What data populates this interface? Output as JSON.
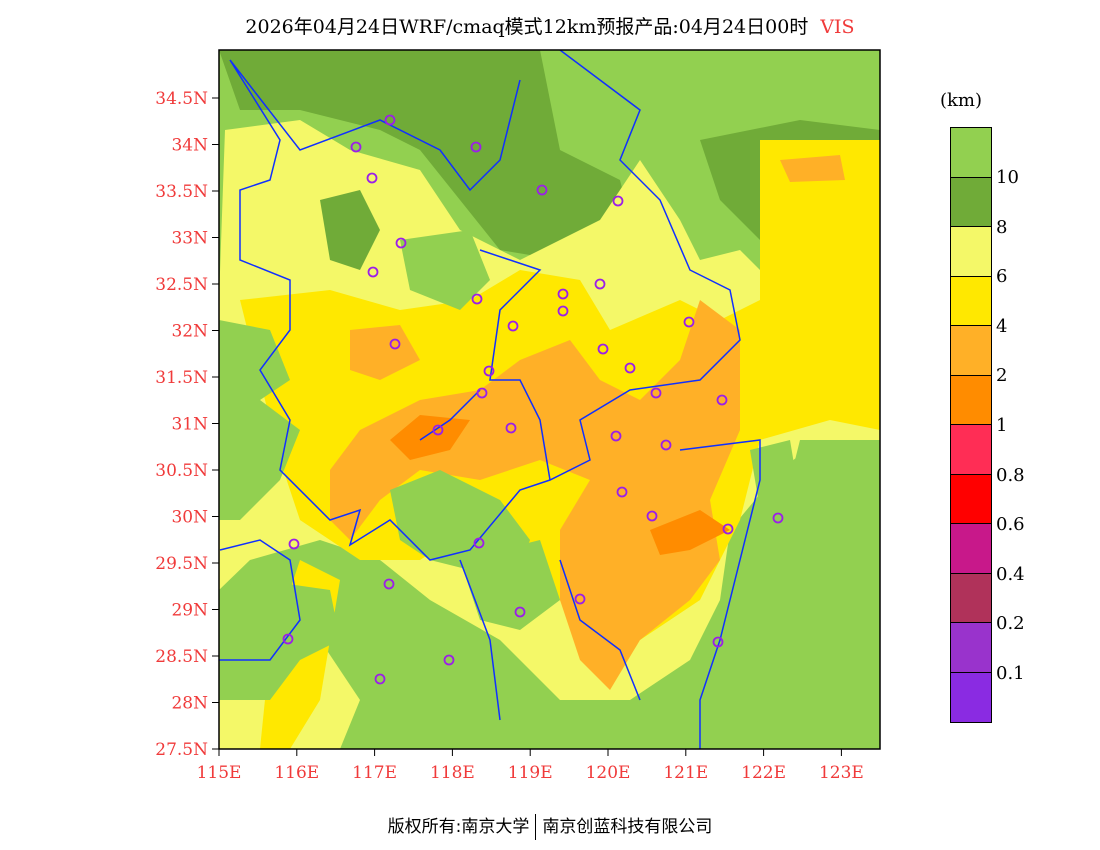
{
  "title": {
    "text": "2026年04月24日WRF/cmaq模式12km预报产品:04月24日00时",
    "variable": "VIS"
  },
  "axes": {
    "lat_labels": [
      "27.5N",
      "28N",
      "28.5N",
      "29N",
      "29.5N",
      "30N",
      "30.5N",
      "31N",
      "31.5N",
      "32N",
      "32.5N",
      "33N",
      "33.5N",
      "34N",
      "34.5N"
    ],
    "lon_labels": [
      "115E",
      "116E",
      "117E",
      "118E",
      "119E",
      "120E",
      "121E",
      "122E",
      "123E"
    ]
  },
  "legend": {
    "unit": "(km)",
    "labels": [
      "10",
      "8",
      "6",
      "4",
      "2",
      "1",
      "0.8",
      "0.6",
      "0.4",
      "0.2",
      "0.1"
    ],
    "colors": [
      "#92d050",
      "#70ab38",
      "#f4f868",
      "#ffe800",
      "#ffb027",
      "#ff8c00",
      "#ff2d55",
      "#ff0000",
      "#c8188a",
      "#b0325a",
      "#9933cc",
      "#8a2be2"
    ]
  },
  "footer": {
    "left": "版权所有:南京大学",
    "right": "南京创蓝科技有限公司"
  }
}
